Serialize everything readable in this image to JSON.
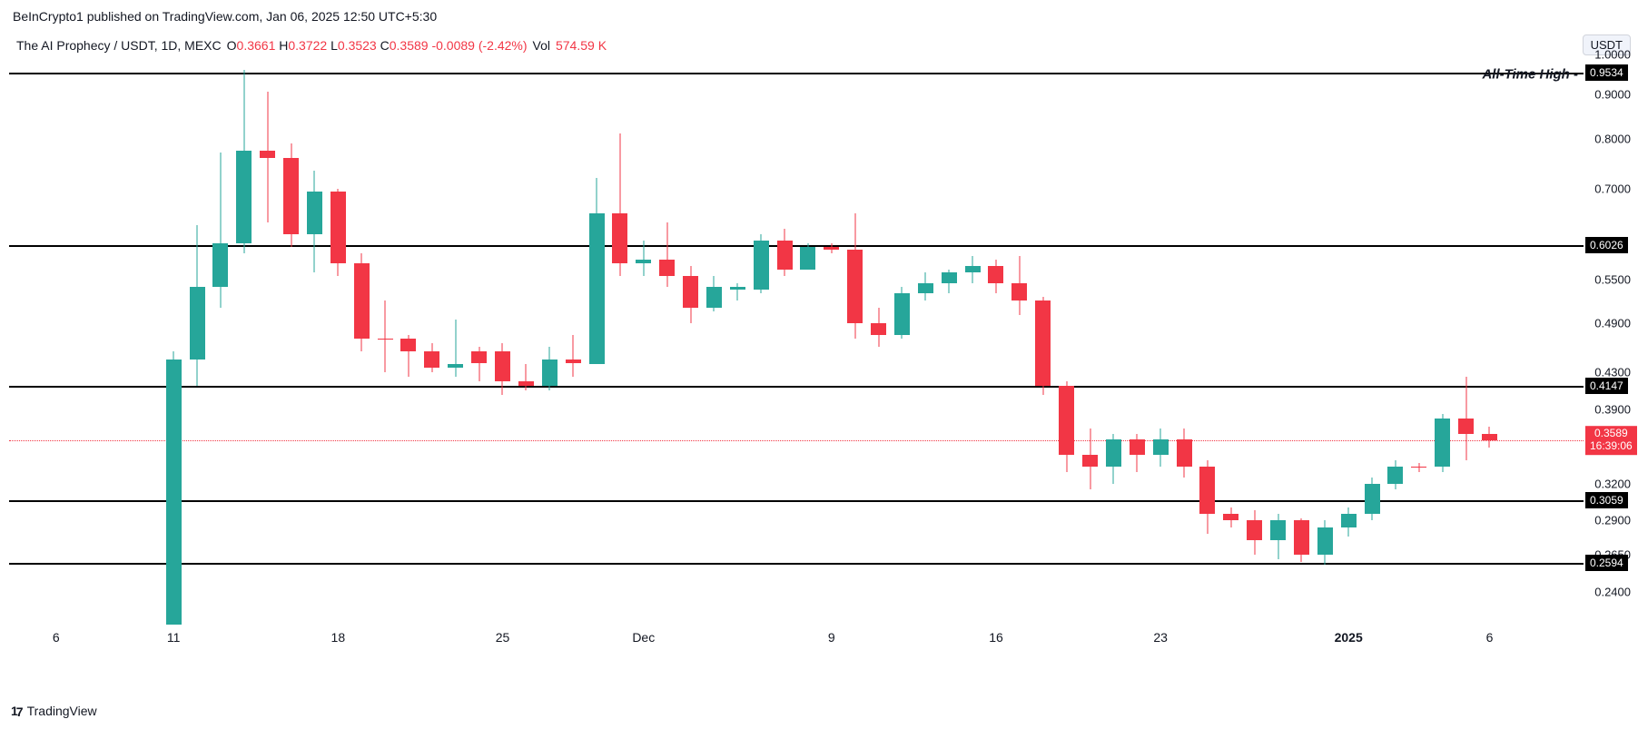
{
  "credit": "BeInCrypto1 published on TradingView.com, Jan 06, 2025 12:50 UTC+5:30",
  "legend": {
    "symbol": "The AI Prophecy / USDT, 1D, MEXC",
    "o_label": "O",
    "o": "0.3661",
    "h_label": "H",
    "h": "0.3722",
    "l_label": "L",
    "l": "0.3523",
    "c_label": "C",
    "c": "0.3589",
    "chg": "-0.0089",
    "pct": "(-2.42%)",
    "vol_label": "Vol",
    "vol": "574.59 K"
  },
  "badge": "USDT",
  "footer": "TradingView",
  "colors": {
    "up": "#26a69a",
    "down": "#f23645",
    "text_red": "#f23645",
    "line_black": "#000000",
    "bg": "#ffffff"
  },
  "chart": {
    "type": "candlestick",
    "ymin": 0.22,
    "ymax": 1.0,
    "yticks": [
      {
        "v": 1.0,
        "label": "1.0000"
      },
      {
        "v": 0.9,
        "label": "0.9000"
      },
      {
        "v": 0.8,
        "label": "0.8000"
      },
      {
        "v": 0.7,
        "label": "0.7000"
      },
      {
        "v": 0.6026,
        "label": ""
      },
      {
        "v": 0.55,
        "label": "0.5500"
      },
      {
        "v": 0.49,
        "label": "0.4900"
      },
      {
        "v": 0.43,
        "label": "0.4300"
      },
      {
        "v": 0.39,
        "label": "0.3900"
      },
      {
        "v": 0.3589,
        "label": ""
      },
      {
        "v": 0.32,
        "label": "0.3200"
      },
      {
        "v": 0.29,
        "label": "0.2900"
      },
      {
        "v": 0.265,
        "label": "0.2650"
      },
      {
        "v": 0.24,
        "label": "0.2400"
      }
    ],
    "xticks": [
      {
        "i": -3,
        "label": "6",
        "bold": false
      },
      {
        "i": 2,
        "label": "11",
        "bold": false
      },
      {
        "i": 9,
        "label": "18",
        "bold": false
      },
      {
        "i": 16,
        "label": "25",
        "bold": false
      },
      {
        "i": 22,
        "label": "Dec",
        "bold": false
      },
      {
        "i": 30,
        "label": "9",
        "bold": false
      },
      {
        "i": 37,
        "label": "16",
        "bold": false
      },
      {
        "i": 44,
        "label": "23",
        "bold": false
      },
      {
        "i": 52,
        "label": "2025",
        "bold": true
      },
      {
        "i": 58,
        "label": "6",
        "bold": false
      }
    ],
    "x_start": -5,
    "x_end": 62,
    "hlines": [
      {
        "v": 0.9534,
        "label": "0.9534",
        "text": "All-Time High"
      },
      {
        "v": 0.6026,
        "label": "0.6026"
      },
      {
        "v": 0.4147,
        "label": "0.4147"
      },
      {
        "v": 0.3059,
        "label": "0.3059"
      },
      {
        "v": 0.2594,
        "label": "0.2594"
      }
    ],
    "price_line": {
      "v": 0.3589,
      "label": "0.3589",
      "sub": "16:39:06"
    },
    "candle_width": 17,
    "candles": [
      {
        "i": 2,
        "o": 0.22,
        "h": 0.455,
        "l": 0.22,
        "c": 0.445,
        "dir": "up"
      },
      {
        "i": 3,
        "o": 0.445,
        "h": 0.635,
        "l": 0.415,
        "c": 0.54,
        "dir": "up"
      },
      {
        "i": 4,
        "o": 0.54,
        "h": 0.77,
        "l": 0.51,
        "c": 0.605,
        "dir": "up"
      },
      {
        "i": 5,
        "o": 0.605,
        "h": 0.96,
        "l": 0.59,
        "c": 0.775,
        "dir": "up"
      },
      {
        "i": 6,
        "o": 0.775,
        "h": 0.905,
        "l": 0.64,
        "c": 0.76,
        "dir": "down"
      },
      {
        "i": 7,
        "o": 0.76,
        "h": 0.79,
        "l": 0.6,
        "c": 0.62,
        "dir": "down"
      },
      {
        "i": 8,
        "o": 0.62,
        "h": 0.735,
        "l": 0.56,
        "c": 0.695,
        "dir": "up"
      },
      {
        "i": 9,
        "o": 0.695,
        "h": 0.7,
        "l": 0.555,
        "c": 0.575,
        "dir": "down"
      },
      {
        "i": 10,
        "o": 0.575,
        "h": 0.59,
        "l": 0.455,
        "c": 0.47,
        "dir": "down"
      },
      {
        "i": 11,
        "o": 0.47,
        "h": 0.52,
        "l": 0.43,
        "c": 0.47,
        "dir": "down"
      },
      {
        "i": 12,
        "o": 0.47,
        "h": 0.475,
        "l": 0.425,
        "c": 0.455,
        "dir": "down"
      },
      {
        "i": 13,
        "o": 0.455,
        "h": 0.465,
        "l": 0.43,
        "c": 0.435,
        "dir": "down"
      },
      {
        "i": 14,
        "o": 0.435,
        "h": 0.495,
        "l": 0.425,
        "c": 0.44,
        "dir": "up"
      },
      {
        "i": 15,
        "o": 0.44,
        "h": 0.46,
        "l": 0.42,
        "c": 0.455,
        "dir": "down"
      },
      {
        "i": 16,
        "o": 0.455,
        "h": 0.465,
        "l": 0.405,
        "c": 0.42,
        "dir": "down"
      },
      {
        "i": 17,
        "o": 0.42,
        "h": 0.44,
        "l": 0.41,
        "c": 0.415,
        "dir": "down"
      },
      {
        "i": 18,
        "o": 0.415,
        "h": 0.46,
        "l": 0.41,
        "c": 0.445,
        "dir": "up"
      },
      {
        "i": 19,
        "o": 0.445,
        "h": 0.475,
        "l": 0.425,
        "c": 0.44,
        "dir": "down"
      },
      {
        "i": 20,
        "o": 0.44,
        "h": 0.72,
        "l": 0.44,
        "c": 0.655,
        "dir": "up"
      },
      {
        "i": 21,
        "o": 0.655,
        "h": 0.81,
        "l": 0.555,
        "c": 0.575,
        "dir": "down"
      },
      {
        "i": 22,
        "o": 0.575,
        "h": 0.61,
        "l": 0.555,
        "c": 0.58,
        "dir": "up"
      },
      {
        "i": 23,
        "o": 0.58,
        "h": 0.64,
        "l": 0.54,
        "c": 0.555,
        "dir": "down"
      },
      {
        "i": 24,
        "o": 0.555,
        "h": 0.57,
        "l": 0.49,
        "c": 0.51,
        "dir": "down"
      },
      {
        "i": 25,
        "o": 0.51,
        "h": 0.555,
        "l": 0.505,
        "c": 0.54,
        "dir": "up"
      },
      {
        "i": 26,
        "o": 0.54,
        "h": 0.545,
        "l": 0.52,
        "c": 0.535,
        "dir": "up"
      },
      {
        "i": 27,
        "o": 0.535,
        "h": 0.62,
        "l": 0.53,
        "c": 0.61,
        "dir": "up"
      },
      {
        "i": 28,
        "o": 0.61,
        "h": 0.63,
        "l": 0.555,
        "c": 0.565,
        "dir": "down"
      },
      {
        "i": 29,
        "o": 0.565,
        "h": 0.605,
        "l": 0.565,
        "c": 0.6,
        "dir": "up"
      },
      {
        "i": 30,
        "o": 0.6,
        "h": 0.605,
        "l": 0.59,
        "c": 0.595,
        "dir": "down"
      },
      {
        "i": 31,
        "o": 0.595,
        "h": 0.655,
        "l": 0.47,
        "c": 0.49,
        "dir": "down"
      },
      {
        "i": 32,
        "o": 0.49,
        "h": 0.51,
        "l": 0.46,
        "c": 0.475,
        "dir": "down"
      },
      {
        "i": 33,
        "o": 0.475,
        "h": 0.54,
        "l": 0.47,
        "c": 0.53,
        "dir": "up"
      },
      {
        "i": 34,
        "o": 0.53,
        "h": 0.56,
        "l": 0.52,
        "c": 0.545,
        "dir": "up"
      },
      {
        "i": 35,
        "o": 0.545,
        "h": 0.565,
        "l": 0.53,
        "c": 0.56,
        "dir": "up"
      },
      {
        "i": 36,
        "o": 0.56,
        "h": 0.585,
        "l": 0.545,
        "c": 0.57,
        "dir": "up"
      },
      {
        "i": 37,
        "o": 0.57,
        "h": 0.58,
        "l": 0.53,
        "c": 0.545,
        "dir": "down"
      },
      {
        "i": 38,
        "o": 0.545,
        "h": 0.585,
        "l": 0.5,
        "c": 0.52,
        "dir": "down"
      },
      {
        "i": 39,
        "o": 0.52,
        "h": 0.525,
        "l": 0.405,
        "c": 0.415,
        "dir": "down"
      },
      {
        "i": 40,
        "o": 0.415,
        "h": 0.42,
        "l": 0.33,
        "c": 0.345,
        "dir": "down"
      },
      {
        "i": 41,
        "o": 0.345,
        "h": 0.37,
        "l": 0.315,
        "c": 0.335,
        "dir": "down"
      },
      {
        "i": 42,
        "o": 0.335,
        "h": 0.365,
        "l": 0.32,
        "c": 0.36,
        "dir": "up"
      },
      {
        "i": 43,
        "o": 0.36,
        "h": 0.365,
        "l": 0.33,
        "c": 0.345,
        "dir": "down"
      },
      {
        "i": 44,
        "o": 0.345,
        "h": 0.37,
        "l": 0.335,
        "c": 0.36,
        "dir": "up"
      },
      {
        "i": 45,
        "o": 0.36,
        "h": 0.37,
        "l": 0.325,
        "c": 0.335,
        "dir": "down"
      },
      {
        "i": 46,
        "o": 0.335,
        "h": 0.34,
        "l": 0.28,
        "c": 0.295,
        "dir": "down"
      },
      {
        "i": 47,
        "o": 0.295,
        "h": 0.3,
        "l": 0.285,
        "c": 0.29,
        "dir": "down"
      },
      {
        "i": 48,
        "o": 0.29,
        "h": 0.298,
        "l": 0.265,
        "c": 0.275,
        "dir": "down"
      },
      {
        "i": 49,
        "o": 0.275,
        "h": 0.295,
        "l": 0.262,
        "c": 0.29,
        "dir": "up"
      },
      {
        "i": 50,
        "o": 0.29,
        "h": 0.292,
        "l": 0.26,
        "c": 0.265,
        "dir": "down"
      },
      {
        "i": 51,
        "o": 0.265,
        "h": 0.29,
        "l": 0.258,
        "c": 0.285,
        "dir": "up"
      },
      {
        "i": 52,
        "o": 0.285,
        "h": 0.3,
        "l": 0.278,
        "c": 0.295,
        "dir": "up"
      },
      {
        "i": 53,
        "o": 0.295,
        "h": 0.325,
        "l": 0.29,
        "c": 0.32,
        "dir": "up"
      },
      {
        "i": 54,
        "o": 0.32,
        "h": 0.34,
        "l": 0.315,
        "c": 0.335,
        "dir": "up"
      },
      {
        "i": 55,
        "o": 0.335,
        "h": 0.338,
        "l": 0.33,
        "c": 0.335,
        "dir": "down"
      },
      {
        "i": 56,
        "o": 0.335,
        "h": 0.385,
        "l": 0.33,
        "c": 0.38,
        "dir": "up"
      },
      {
        "i": 57,
        "o": 0.38,
        "h": 0.425,
        "l": 0.34,
        "c": 0.365,
        "dir": "down"
      },
      {
        "i": 58,
        "o": 0.365,
        "h": 0.372,
        "l": 0.352,
        "c": 0.359,
        "dir": "down"
      }
    ]
  }
}
